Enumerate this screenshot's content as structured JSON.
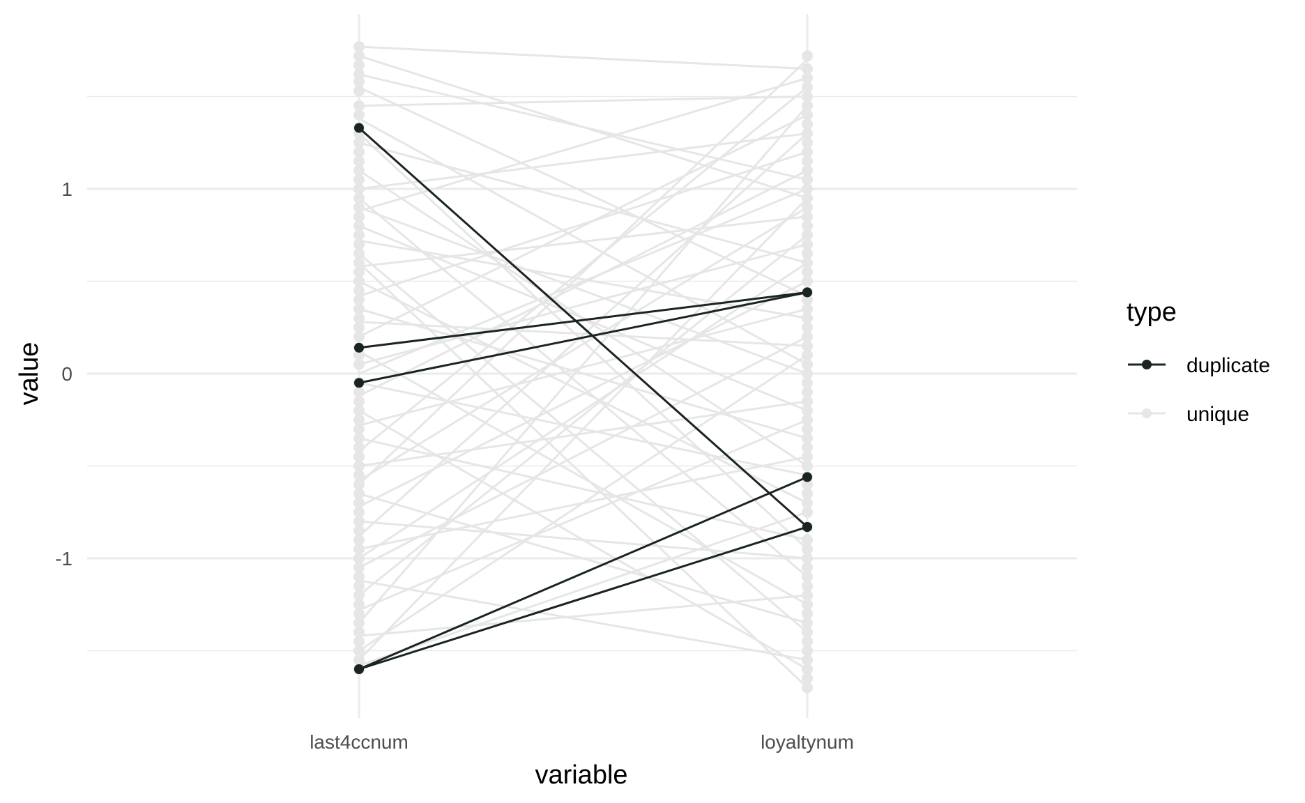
{
  "chart_data": {
    "type": "line",
    "subtype": "parallel-coordinates",
    "xlabel": "variable",
    "ylabel": "value",
    "categories": [
      "last4ccnum",
      "loyaltynum"
    ],
    "ylim": [
      -1.86,
      1.9
    ],
    "y_ticks": [
      -1,
      0,
      1
    ],
    "y_tick_labels": [
      "-1",
      "0",
      "1"
    ],
    "grid": true,
    "legend": {
      "title": "type",
      "position": "right",
      "entries": [
        {
          "label": "duplicate",
          "color": "#1a2421"
        },
        {
          "label": "unique",
          "color": "#e6e6e6"
        }
      ]
    },
    "colors": {
      "duplicate": "#1a2421",
      "unique": "#e6e6e6",
      "grid": "#ebebeb"
    },
    "series": [
      {
        "name": "unique",
        "lines": [
          [
            1.77,
            1.65
          ],
          [
            1.72,
            0.95
          ],
          [
            1.62,
            1.05
          ],
          [
            1.55,
            0.42
          ],
          [
            1.45,
            1.5
          ],
          [
            1.38,
            0.05
          ],
          [
            1.25,
            0.6
          ],
          [
            1.1,
            -0.5
          ],
          [
            1.0,
            1.3
          ],
          [
            0.95,
            -1.1
          ],
          [
            0.88,
            1.6
          ],
          [
            0.8,
            -0.2
          ],
          [
            0.72,
            0.3
          ],
          [
            0.65,
            -1.4
          ],
          [
            0.58,
            0.85
          ],
          [
            0.5,
            -0.7
          ],
          [
            0.42,
            1.2
          ],
          [
            0.35,
            -0.35
          ],
          [
            0.28,
            0.15
          ],
          [
            0.2,
            1.4
          ],
          [
            0.12,
            -1.25
          ],
          [
            0.05,
            0.7
          ],
          [
            -0.05,
            -0.55
          ],
          [
            -0.12,
            1.1
          ],
          [
            -0.2,
            -1.6
          ],
          [
            -0.28,
            0.35
          ],
          [
            -0.35,
            -0.9
          ],
          [
            -0.42,
            1.55
          ],
          [
            -0.5,
            -0.15
          ],
          [
            -0.58,
            0.9
          ],
          [
            -0.65,
            -1.35
          ],
          [
            -0.72,
            0.5
          ],
          [
            -0.8,
            -1.0
          ],
          [
            -0.88,
            1.3
          ],
          [
            -0.95,
            -0.45
          ],
          [
            -1.05,
            0.2
          ],
          [
            -1.12,
            -1.55
          ],
          [
            -1.2,
            0.75
          ],
          [
            -1.28,
            -0.25
          ],
          [
            -1.35,
            1.45
          ],
          [
            -1.42,
            -1.2
          ],
          [
            -1.5,
            0.1
          ],
          [
            -1.55,
            0.95
          ],
          [
            -1.58,
            -0.75
          ],
          [
            -0.6,
            1.7
          ],
          [
            0.6,
            -1.7
          ],
          [
            1.3,
            -0.95
          ],
          [
            -1.0,
            0.6
          ],
          [
            0.0,
            1.0
          ],
          [
            0.9,
            0.0
          ]
        ]
      },
      {
        "name": "duplicate",
        "lines": [
          [
            1.33,
            -0.83
          ],
          [
            0.14,
            0.44
          ],
          [
            -0.05,
            0.44
          ],
          [
            -1.6,
            -0.56
          ],
          [
            -1.6,
            -0.83
          ]
        ]
      }
    ],
    "axis_points": {
      "last4ccnum": [
        1.77,
        1.72,
        1.67,
        1.62,
        1.58,
        1.53,
        1.45,
        1.4,
        1.33,
        1.3,
        1.25,
        1.2,
        1.15,
        1.1,
        1.05,
        1.0,
        0.95,
        0.9,
        0.85,
        0.8,
        0.75,
        0.7,
        0.65,
        0.6,
        0.55,
        0.5,
        0.45,
        0.4,
        0.35,
        0.3,
        0.25,
        0.2,
        0.14,
        0.1,
        0.05,
        -0.05,
        -0.1,
        -0.15,
        -0.2,
        -0.25,
        -0.3,
        -0.35,
        -0.4,
        -0.45,
        -0.5,
        -0.55,
        -0.6,
        -0.65,
        -0.7,
        -0.75,
        -0.8,
        -0.85,
        -0.9,
        -0.95,
        -1.0,
        -1.05,
        -1.1,
        -1.15,
        -1.2,
        -1.25,
        -1.3,
        -1.35,
        -1.4,
        -1.45,
        -1.5,
        -1.55,
        -1.6
      ],
      "loyaltynum": [
        1.72,
        1.65,
        1.6,
        1.55,
        1.5,
        1.45,
        1.4,
        1.35,
        1.3,
        1.25,
        1.2,
        1.15,
        1.1,
        1.05,
        1.0,
        0.95,
        0.9,
        0.85,
        0.8,
        0.75,
        0.7,
        0.65,
        0.6,
        0.55,
        0.5,
        0.44,
        0.4,
        0.35,
        0.3,
        0.25,
        0.2,
        0.15,
        0.1,
        0.05,
        0.0,
        -0.05,
        -0.1,
        -0.15,
        -0.2,
        -0.25,
        -0.3,
        -0.35,
        -0.4,
        -0.45,
        -0.5,
        -0.56,
        -0.6,
        -0.65,
        -0.7,
        -0.75,
        -0.83,
        -0.9,
        -0.95,
        -1.0,
        -1.05,
        -1.1,
        -1.15,
        -1.2,
        -1.25,
        -1.3,
        -1.35,
        -1.4,
        -1.45,
        -1.5,
        -1.55,
        -1.6,
        -1.65,
        -1.7
      ]
    }
  }
}
